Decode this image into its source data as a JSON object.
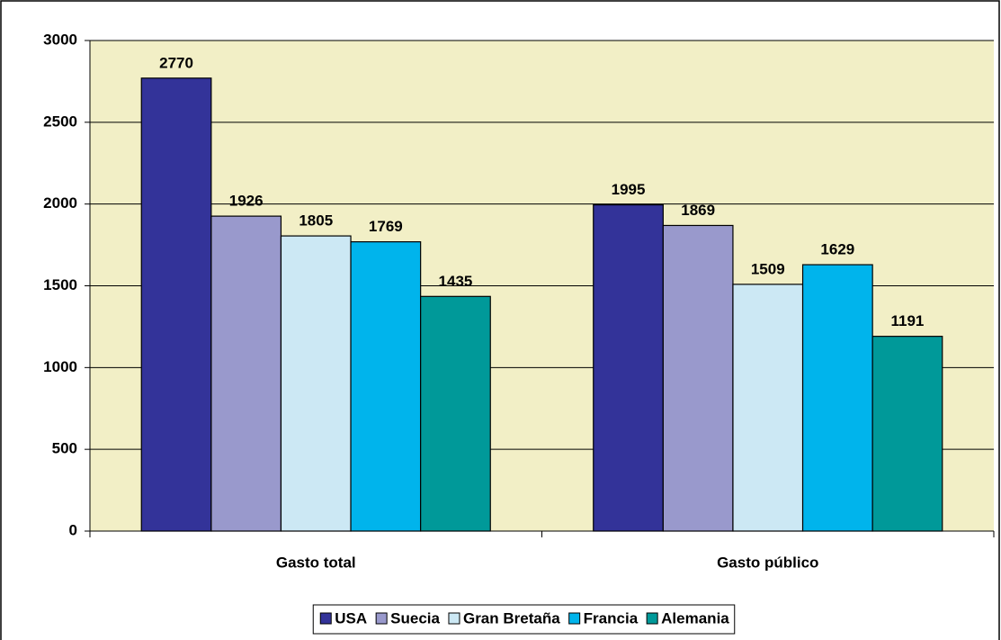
{
  "chart_data": {
    "type": "bar",
    "categories": [
      "Gasto total",
      "Gasto público"
    ],
    "series": [
      {
        "name": "USA",
        "color": "#333399",
        "values": [
          2770,
          1995
        ]
      },
      {
        "name": "Suecia",
        "color": "#9999cc",
        "values": [
          1926,
          1869
        ]
      },
      {
        "name": "Gran Bretaña",
        "color": "#cce8f4",
        "values": [
          1805,
          1509
        ]
      },
      {
        "name": "Francia",
        "color": "#00b4ec",
        "values": [
          1769,
          1629
        ]
      },
      {
        "name": "Alemania",
        "color": "#009999",
        "values": [
          1435,
          1191
        ]
      }
    ],
    "ylim": [
      0,
      3000
    ],
    "yticks": [
      0,
      500,
      1000,
      1500,
      2000,
      2500,
      3000
    ],
    "grid": true,
    "legend": "bottom"
  }
}
